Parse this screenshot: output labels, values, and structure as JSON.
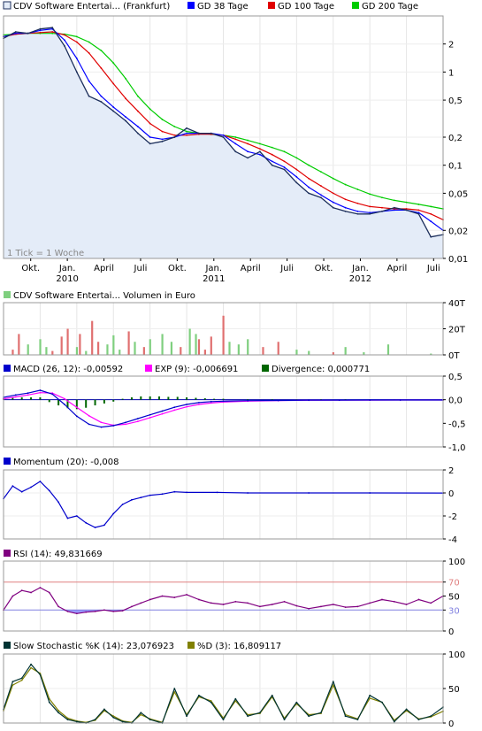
{
  "colors": {
    "price": "#1c2f5c",
    "gd38": "#0000ff",
    "gd100": "#e00000",
    "gd200": "#00cc00",
    "area": "#e4ecf8",
    "volume_up": "#7fcf7f",
    "volume_down": "#e07070",
    "macd": "#0000cc",
    "exp": "#ff00ff",
    "divergence": "#006600",
    "momentum": "#0000cc",
    "rsi": "#800080",
    "rsi_70": "#e08080",
    "rsi_30": "#8080e0",
    "rsi_fill": "#8080ff",
    "stoch_k": "#003333",
    "stoch_d": "#808000",
    "border": "#999999"
  },
  "chart_data": [
    {
      "type": "line",
      "panel": "price",
      "scale": "log",
      "legend": [
        "CDV Software Entertai... (Frankfurt)",
        "GD 38 Tage",
        "GD 100 Tage",
        "GD 200 Tage"
      ],
      "note": "1 Tick = 1 Woche",
      "x_ticks": [
        "Okt.",
        "Jan.",
        "April",
        "Juli",
        "Okt.",
        "Jan.",
        "April",
        "Juli",
        "Okt.",
        "Jan.",
        "April",
        "Juli"
      ],
      "x_years": [
        "2010",
        "2011",
        "2012"
      ],
      "y_tick_labels": [
        "2",
        "1",
        "0,5",
        "0,2",
        "0,1",
        "0,05",
        "0,02",
        "0,01"
      ],
      "y_ticks": [
        2,
        1,
        0.5,
        0.2,
        0.1,
        0.05,
        0.02,
        0.01
      ],
      "ylim": [
        0.01,
        4
      ],
      "x": [
        0,
        4,
        8,
        12,
        16,
        20,
        24,
        28,
        32,
        36,
        40,
        44,
        48,
        52,
        56,
        60,
        64,
        68,
        72,
        76,
        80,
        84,
        88,
        92,
        96,
        100,
        104,
        108,
        112,
        116,
        120,
        124,
        128,
        132,
        136,
        140,
        144
      ],
      "series": [
        {
          "name": "CDV Software Entertai... (Frankfurt)",
          "values": [
            2.3,
            2.7,
            2.6,
            2.9,
            3.0,
            1.9,
            1.0,
            0.55,
            0.48,
            0.38,
            0.3,
            0.22,
            0.17,
            0.18,
            0.2,
            0.25,
            0.22,
            0.22,
            0.2,
            0.14,
            0.12,
            0.14,
            0.1,
            0.09,
            0.065,
            0.05,
            0.045,
            0.035,
            0.032,
            0.03,
            0.03,
            0.032,
            0.035,
            0.033,
            0.03,
            0.017,
            0.018
          ]
        },
        {
          "name": "GD 38 Tage",
          "values": [
            2.4,
            2.6,
            2.6,
            2.8,
            2.9,
            2.2,
            1.4,
            0.8,
            0.55,
            0.42,
            0.33,
            0.26,
            0.2,
            0.19,
            0.2,
            0.22,
            0.22,
            0.22,
            0.21,
            0.17,
            0.14,
            0.13,
            0.11,
            0.095,
            0.075,
            0.058,
            0.048,
            0.04,
            0.035,
            0.032,
            0.031,
            0.032,
            0.033,
            0.033,
            0.031,
            0.025,
            0.02
          ]
        },
        {
          "name": "GD 100 Tage",
          "values": [
            2.4,
            2.55,
            2.6,
            2.65,
            2.7,
            2.5,
            2.1,
            1.6,
            1.1,
            0.75,
            0.52,
            0.38,
            0.28,
            0.23,
            0.21,
            0.21,
            0.215,
            0.215,
            0.21,
            0.19,
            0.17,
            0.15,
            0.13,
            0.11,
            0.09,
            0.072,
            0.06,
            0.05,
            0.043,
            0.039,
            0.036,
            0.035,
            0.034,
            0.034,
            0.033,
            0.03,
            0.026
          ]
        },
        {
          "name": "GD 200 Tage",
          "values": [
            2.5,
            2.55,
            2.6,
            2.6,
            2.6,
            2.55,
            2.4,
            2.1,
            1.7,
            1.25,
            0.85,
            0.55,
            0.4,
            0.31,
            0.26,
            0.23,
            0.22,
            0.215,
            0.21,
            0.2,
            0.185,
            0.17,
            0.155,
            0.14,
            0.12,
            0.1,
            0.085,
            0.072,
            0.062,
            0.055,
            0.049,
            0.045,
            0.042,
            0.04,
            0.038,
            0.036,
            0.034
          ]
        }
      ]
    },
    {
      "type": "bar",
      "panel": "volume",
      "legend": [
        "CDV Software Entertai... Volumen in Euro"
      ],
      "y_tick_labels": [
        "40T",
        "20T",
        "0T"
      ],
      "y_ticks": [
        40000,
        20000,
        0
      ],
      "ylim": [
        0,
        40000
      ],
      "x": [
        3,
        5,
        8,
        12,
        14,
        16,
        19,
        21,
        24,
        25,
        27,
        29,
        31,
        34,
        36,
        38,
        41,
        43,
        46,
        48,
        52,
        55,
        58,
        61,
        63,
        64,
        66,
        68,
        72,
        74,
        77,
        80,
        85,
        90,
        96,
        100,
        108,
        112,
        118,
        126,
        140
      ],
      "values": [
        4000,
        16000,
        8000,
        12000,
        6000,
        3000,
        14000,
        20000,
        6000,
        16000,
        3000,
        26000,
        10000,
        8000,
        15000,
        4000,
        18000,
        10000,
        6000,
        12000,
        16000,
        10000,
        6000,
        20000,
        16000,
        12000,
        4000,
        14000,
        30000,
        10000,
        8000,
        12000,
        6000,
        10000,
        4000,
        3000,
        2000,
        6000,
        2000,
        8000,
        1000
      ],
      "direction": [
        "d",
        "d",
        "u",
        "u",
        "u",
        "d",
        "d",
        "d",
        "u",
        "d",
        "u",
        "d",
        "d",
        "u",
        "u",
        "u",
        "d",
        "u",
        "d",
        "u",
        "u",
        "u",
        "d",
        "u",
        "u",
        "d",
        "d",
        "d",
        "d",
        "u",
        "u",
        "u",
        "d",
        "d",
        "u",
        "u",
        "d",
        "u",
        "u",
        "u",
        "u"
      ]
    },
    {
      "type": "line",
      "panel": "macd",
      "legend": [
        "MACD (26, 12): -0,00592",
        "EXP (9): -0,006691",
        "Divergence: 0,000771"
      ],
      "y_tick_labels": [
        "0,5",
        "0,0",
        "-0,5",
        "-1,0"
      ],
      "y_ticks": [
        0.5,
        0,
        -0.5,
        -1.0
      ],
      "ylim": [
        -1.0,
        0.5
      ],
      "x": [
        0,
        4,
        8,
        12,
        16,
        20,
        24,
        28,
        32,
        36,
        40,
        44,
        48,
        52,
        56,
        60,
        64,
        68,
        72,
        80,
        90,
        100,
        110,
        120,
        130,
        144
      ],
      "series": [
        {
          "name": "MACD (26, 12)",
          "values": [
            0.05,
            0.1,
            0.14,
            0.2,
            0.12,
            -0.1,
            -0.35,
            -0.52,
            -0.58,
            -0.55,
            -0.48,
            -0.4,
            -0.32,
            -0.24,
            -0.16,
            -0.1,
            -0.06,
            -0.04,
            -0.03,
            -0.02,
            -0.015,
            -0.01,
            -0.008,
            -0.007,
            -0.006,
            -0.006
          ]
        },
        {
          "name": "EXP (9)",
          "values": [
            0.02,
            0.06,
            0.1,
            0.15,
            0.14,
            0.02,
            -0.16,
            -0.34,
            -0.48,
            -0.54,
            -0.52,
            -0.46,
            -0.38,
            -0.3,
            -0.22,
            -0.15,
            -0.1,
            -0.07,
            -0.05,
            -0.03,
            -0.02,
            -0.012,
            -0.009,
            -0.008,
            -0.007,
            -0.007
          ]
        }
      ],
      "divergence_x": [
        0,
        3,
        6,
        9,
        12,
        15,
        18,
        21,
        24,
        27,
        30,
        33,
        36,
        39,
        42,
        45,
        48,
        51,
        54,
        57,
        60,
        63,
        66,
        69,
        72,
        80,
        88,
        96,
        104,
        112,
        120,
        128,
        136,
        144
      ],
      "divergence": [
        0.03,
        0.04,
        0.05,
        0.05,
        0.05,
        -0.05,
        -0.12,
        -0.18,
        -0.2,
        -0.17,
        -0.12,
        -0.08,
        -0.04,
        0.02,
        0.05,
        0.07,
        0.07,
        0.07,
        0.06,
        0.06,
        0.05,
        0.04,
        0.03,
        0.02,
        0.02,
        0.01,
        0.01,
        0.005,
        0.01,
        0.01,
        0.005,
        0.005,
        0.002,
        0.001
      ]
    },
    {
      "type": "line",
      "panel": "momentum",
      "legend": [
        "Momentum (20): -0,008"
      ],
      "y_tick_labels": [
        "2",
        "0",
        "-2",
        "-4"
      ],
      "y_ticks": [
        2,
        0,
        -2,
        -4
      ],
      "ylim": [
        -4,
        2
      ],
      "x": [
        0,
        3,
        6,
        9,
        12,
        15,
        18,
        21,
        24,
        27,
        30,
        33,
        36,
        39,
        42,
        45,
        48,
        52,
        56,
        60,
        70,
        80,
        100,
        120,
        144
      ],
      "series": [
        {
          "name": "Momentum (20)",
          "values": [
            -0.5,
            0.6,
            0.1,
            0.5,
            1.0,
            0.2,
            -0.8,
            -2.2,
            -2.0,
            -2.6,
            -3.0,
            -2.8,
            -1.8,
            -1.0,
            -0.6,
            -0.4,
            -0.2,
            -0.1,
            0.1,
            0.05,
            0.05,
            0.0,
            0.0,
            0.0,
            -0.008
          ]
        }
      ]
    },
    {
      "type": "line",
      "panel": "rsi",
      "legend": [
        "RSI (14): 49,831669"
      ],
      "y_tick_labels": [
        "100",
        "70",
        "50",
        "30",
        "0"
      ],
      "y_ticks": [
        100,
        70,
        50,
        30,
        0
      ],
      "ylim": [
        0,
        100
      ],
      "x": [
        0,
        3,
        6,
        9,
        12,
        15,
        18,
        21,
        24,
        27,
        30,
        33,
        36,
        39,
        42,
        45,
        48,
        52,
        56,
        60,
        64,
        68,
        72,
        76,
        80,
        84,
        88,
        92,
        96,
        100,
        104,
        108,
        112,
        116,
        120,
        124,
        128,
        132,
        136,
        140,
        144
      ],
      "series": [
        {
          "name": "RSI (14)",
          "values": [
            30,
            50,
            58,
            55,
            62,
            55,
            35,
            28,
            25,
            27,
            28,
            30,
            28,
            29,
            35,
            40,
            45,
            50,
            48,
            52,
            45,
            40,
            38,
            42,
            40,
            35,
            38,
            42,
            36,
            32,
            35,
            38,
            34,
            35,
            40,
            45,
            42,
            38,
            45,
            40,
            50
          ]
        }
      ]
    },
    {
      "type": "line",
      "panel": "stochastic",
      "legend": [
        "Slow Stochastic %K (14): 23,076923",
        "%D (3): 16,809117"
      ],
      "y_tick_labels": [
        "100",
        "50",
        "0"
      ],
      "y_ticks": [
        100,
        50,
        0
      ],
      "ylim": [
        0,
        100
      ],
      "x": [
        0,
        3,
        6,
        9,
        12,
        15,
        18,
        21,
        24,
        27,
        30,
        33,
        36,
        39,
        42,
        45,
        48,
        52,
        56,
        60,
        64,
        68,
        72,
        76,
        80,
        84,
        88,
        92,
        96,
        100,
        104,
        108,
        112,
        116,
        120,
        124,
        128,
        132,
        136,
        140,
        144
      ],
      "series": [
        {
          "name": "Slow Stochastic %K (14)",
          "values": [
            20,
            60,
            65,
            85,
            70,
            30,
            15,
            5,
            2,
            0,
            5,
            20,
            8,
            2,
            0,
            15,
            5,
            0,
            50,
            10,
            40,
            30,
            5,
            35,
            10,
            15,
            40,
            5,
            30,
            10,
            15,
            60,
            10,
            5,
            40,
            30,
            2,
            20,
            5,
            10,
            23
          ]
        },
        {
          "name": "%D (3)",
          "values": [
            18,
            55,
            62,
            80,
            72,
            35,
            18,
            7,
            3,
            1,
            4,
            18,
            10,
            3,
            1,
            12,
            6,
            1,
            45,
            12,
            38,
            32,
            7,
            32,
            12,
            14,
            38,
            7,
            28,
            12,
            14,
            55,
            12,
            6,
            36,
            30,
            4,
            18,
            6,
            9,
            17
          ]
        }
      ]
    }
  ]
}
